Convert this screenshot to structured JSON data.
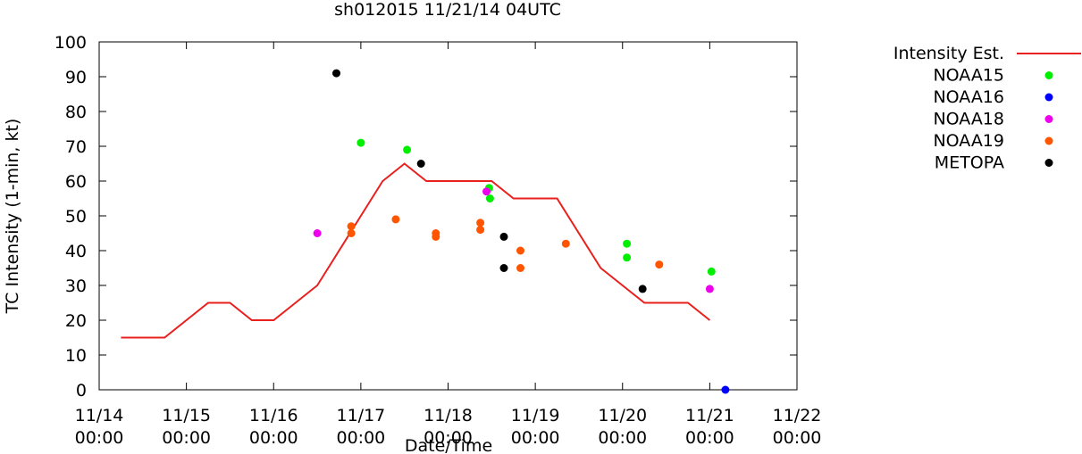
{
  "chart_data": {
    "type": "scatter",
    "title": "sh012015 11/21/14 04UTC",
    "xlabel": "Date/Time",
    "ylabel": "TC Intensity (1-min, kt)",
    "x_range_days": [
      0,
      8
    ],
    "x_ticks": [
      {
        "day": 0,
        "date": "11/14",
        "time": "00:00"
      },
      {
        "day": 1,
        "date": "11/15",
        "time": "00:00"
      },
      {
        "day": 2,
        "date": "11/16",
        "time": "00:00"
      },
      {
        "day": 3,
        "date": "11/17",
        "time": "00:00"
      },
      {
        "day": 4,
        "date": "11/18",
        "time": "00:00"
      },
      {
        "day": 5,
        "date": "11/19",
        "time": "00:00"
      },
      {
        "day": 6,
        "date": "11/20",
        "time": "00:00"
      },
      {
        "day": 7,
        "date": "11/21",
        "time": "00:00"
      },
      {
        "day": 8,
        "date": "11/22",
        "time": "00:00"
      }
    ],
    "ylim": [
      0,
      100
    ],
    "y_ticks": [
      0,
      10,
      20,
      30,
      40,
      50,
      60,
      70,
      80,
      90,
      100
    ],
    "legend_position": "right",
    "intensity": {
      "name": "Intensity Est.",
      "color": "#e8201e",
      "x": [
        0.25,
        0.75,
        1.25,
        1.5,
        1.75,
        2.0,
        2.5,
        3.0,
        3.25,
        3.5,
        3.75,
        4.0,
        4.25,
        4.5,
        4.75,
        5.0,
        5.25,
        5.75,
        6.25,
        6.75,
        7.0
      ],
      "y": [
        15,
        15,
        25,
        25,
        20,
        20,
        30,
        50,
        60,
        65,
        60,
        60,
        60,
        60,
        55,
        55,
        55,
        35,
        25,
        25,
        20
      ]
    },
    "series": [
      {
        "name": "NOAA15",
        "color": "#00ee00",
        "points": [
          [
            3.0,
            71
          ],
          [
            3.53,
            69
          ],
          [
            4.47,
            58
          ],
          [
            4.48,
            55
          ],
          [
            6.05,
            42
          ],
          [
            6.05,
            38
          ],
          [
            7.02,
            34
          ]
        ]
      },
      {
        "name": "NOAA16",
        "color": "#0000ff",
        "points": [
          [
            7.18,
            0
          ]
        ]
      },
      {
        "name": "NOAA18",
        "color": "#ee00ee",
        "points": [
          [
            2.5,
            45
          ],
          [
            4.44,
            57
          ],
          [
            7.0,
            29
          ]
        ]
      },
      {
        "name": "NOAA19",
        "color": "#ff5500",
        "points": [
          [
            2.89,
            47
          ],
          [
            2.89,
            45
          ],
          [
            3.4,
            49
          ],
          [
            3.86,
            45
          ],
          [
            3.86,
            44
          ],
          [
            4.37,
            48
          ],
          [
            4.37,
            46
          ],
          [
            4.83,
            40
          ],
          [
            4.83,
            35
          ],
          [
            5.35,
            42
          ],
          [
            6.42,
            36
          ]
        ]
      },
      {
        "name": "METOPA",
        "color": "#000000",
        "points": [
          [
            2.72,
            91
          ],
          [
            3.69,
            65
          ],
          [
            4.64,
            44
          ],
          [
            4.64,
            35
          ],
          [
            6.23,
            29
          ]
        ]
      }
    ]
  }
}
